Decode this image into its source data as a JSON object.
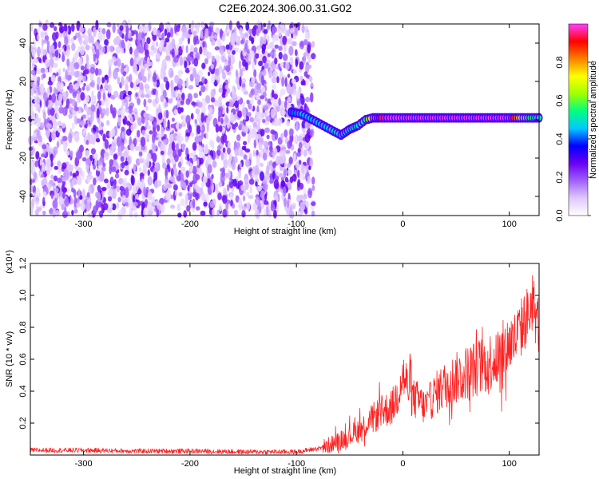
{
  "title": "C2E6.2024.306.00.31.G02",
  "chart_data": [
    {
      "type": "heatmap",
      "panel": "top",
      "xlabel": "Height of straight line (km)",
      "ylabel": "Frequency (Hz)",
      "xlim": [
        -350,
        128
      ],
      "ylim": [
        -50,
        50
      ],
      "xticks": [
        -300,
        -200,
        -100,
        0,
        100
      ],
      "yticks": [
        -40,
        -20,
        0,
        20,
        40
      ],
      "colorbar": {
        "label": "Normalized spectral amplitude",
        "range": [
          0,
          1
        ],
        "ticks": [
          0.0,
          0.2,
          0.4,
          0.6,
          0.8
        ],
        "colormap": [
          "#ffffff",
          "#e0c8ff",
          "#a060ff",
          "#6a00f0",
          "#0000ff",
          "#00c8ff",
          "#00ff80",
          "#a0ff00",
          "#ffff00",
          "#ff8000",
          "#ff0000",
          "#ff40ff"
        ]
      },
      "noise_region": {
        "x_range": [
          -350,
          -90
        ],
        "y_range": [
          -50,
          50
        ],
        "typical_amplitude": 0.1
      },
      "signal_track": {
        "x": [
          -105,
          -95,
          -85,
          -75,
          -65,
          -58,
          -50,
          -42,
          -35,
          -28,
          -20,
          -10,
          0,
          25,
          50,
          75,
          100,
          115,
          128
        ],
        "y": [
          4,
          3,
          0,
          -3,
          -6,
          -8,
          -5,
          -3,
          0,
          1,
          1,
          1,
          1,
          1,
          1,
          1,
          1,
          1,
          1
        ],
        "amplitude": [
          0.4,
          0.45,
          0.45,
          0.45,
          0.5,
          0.45,
          0.5,
          0.5,
          0.55,
          0.8,
          0.95,
          1.0,
          1.0,
          1.0,
          1.0,
          1.0,
          1.0,
          0.6,
          0.5
        ]
      }
    },
    {
      "type": "line",
      "panel": "bottom",
      "xlabel": "Height of straight line (km)",
      "ylabel": "SNR (10 * v/v)",
      "multiplier": "(x10⁴)",
      "xlim": [
        -350,
        128
      ],
      "ylim": [
        0,
        1.2
      ],
      "xticks": [
        -300,
        -200,
        -100,
        0,
        100
      ],
      "yticks": [
        0.2,
        0.4,
        0.6,
        0.8,
        1.0,
        1.2
      ],
      "color": "#ff2020",
      "x": [
        -350,
        -300,
        -250,
        -200,
        -150,
        -120,
        -100,
        -90,
        -80,
        -70,
        -60,
        -50,
        -40,
        -30,
        -20,
        -10,
        -5,
        0,
        5,
        10,
        15,
        20,
        25,
        30,
        40,
        50,
        60,
        70,
        80,
        90,
        100,
        105,
        110,
        115,
        120,
        125,
        128
      ],
      "y": [
        0.03,
        0.03,
        0.025,
        0.025,
        0.02,
        0.02,
        0.02,
        0.03,
        0.04,
        0.06,
        0.09,
        0.12,
        0.16,
        0.22,
        0.27,
        0.3,
        0.38,
        0.5,
        0.42,
        0.35,
        0.34,
        0.3,
        0.33,
        0.38,
        0.44,
        0.48,
        0.52,
        0.55,
        0.58,
        0.62,
        0.7,
        0.72,
        0.78,
        0.85,
        0.9,
        0.88,
        0.8
      ],
      "noise_amplitude": 0.12
    }
  ]
}
